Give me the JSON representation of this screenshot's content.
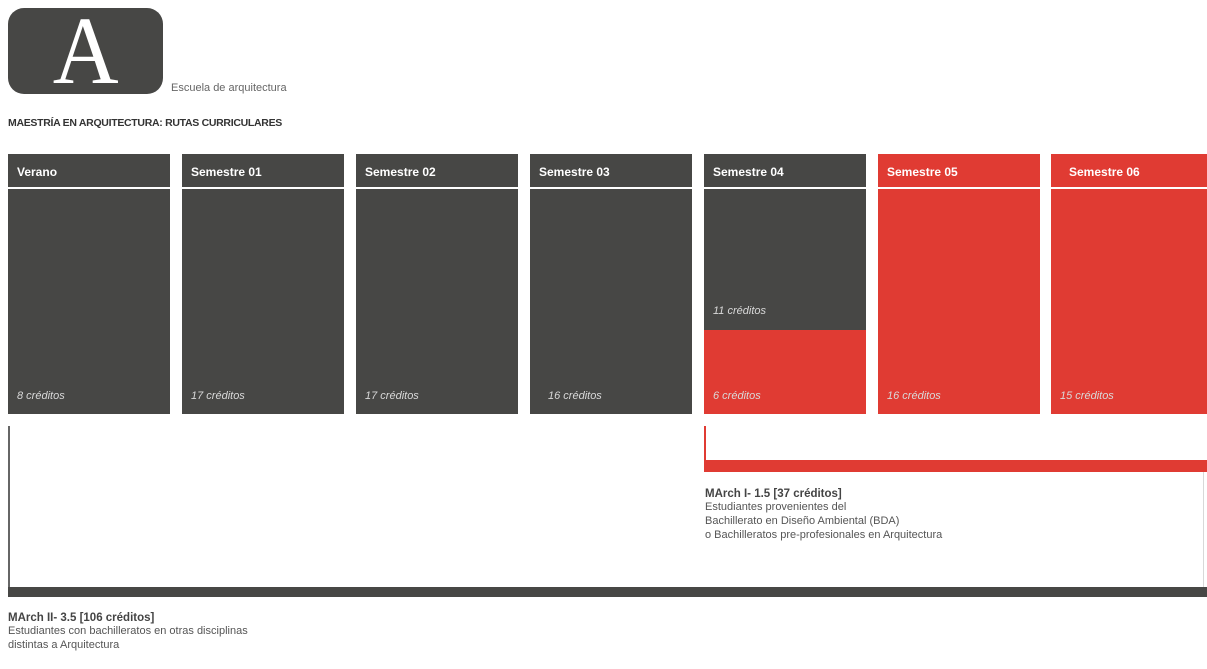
{
  "logo": {
    "letter": "A",
    "caption": "Escuela de arquitectura"
  },
  "subtitle": "MAESTRÍA  EN ARQUITECTURA: RUTAS CURRICULARES",
  "colors": {
    "dark": "#474745",
    "red": "#e03b33"
  },
  "columns": [
    {
      "title": "Verano",
      "credits": "8 créditos"
    },
    {
      "title": "Semestre 01",
      "credits": "17 créditos"
    },
    {
      "title": "Semestre 02",
      "credits": "17 créditos"
    },
    {
      "title": "Semestre 03",
      "credits": "16 créditos"
    },
    {
      "title": "Semestre 04",
      "credits_top": "11 créditos",
      "credits": "6 créditos"
    },
    {
      "title": "Semestre 05",
      "credits": "16 créditos"
    },
    {
      "title": "Semestre 06",
      "credits": "15 créditos"
    }
  ],
  "route_march1": {
    "title": "MArch I- 1.5 [37 créditos]",
    "lines": [
      "Estudiantes provenientes del",
      "Bachillerato en Diseño Ambiental (BDA)",
      "o Bachilleratos pre-profesionales en Arquitectura"
    ]
  },
  "route_march2": {
    "title": "MArch II- 3.5 [106 créditos]",
    "lines": [
      "Estudiantes con bachilleratos en otras disciplinas",
      "distintas a Arquitectura"
    ]
  }
}
